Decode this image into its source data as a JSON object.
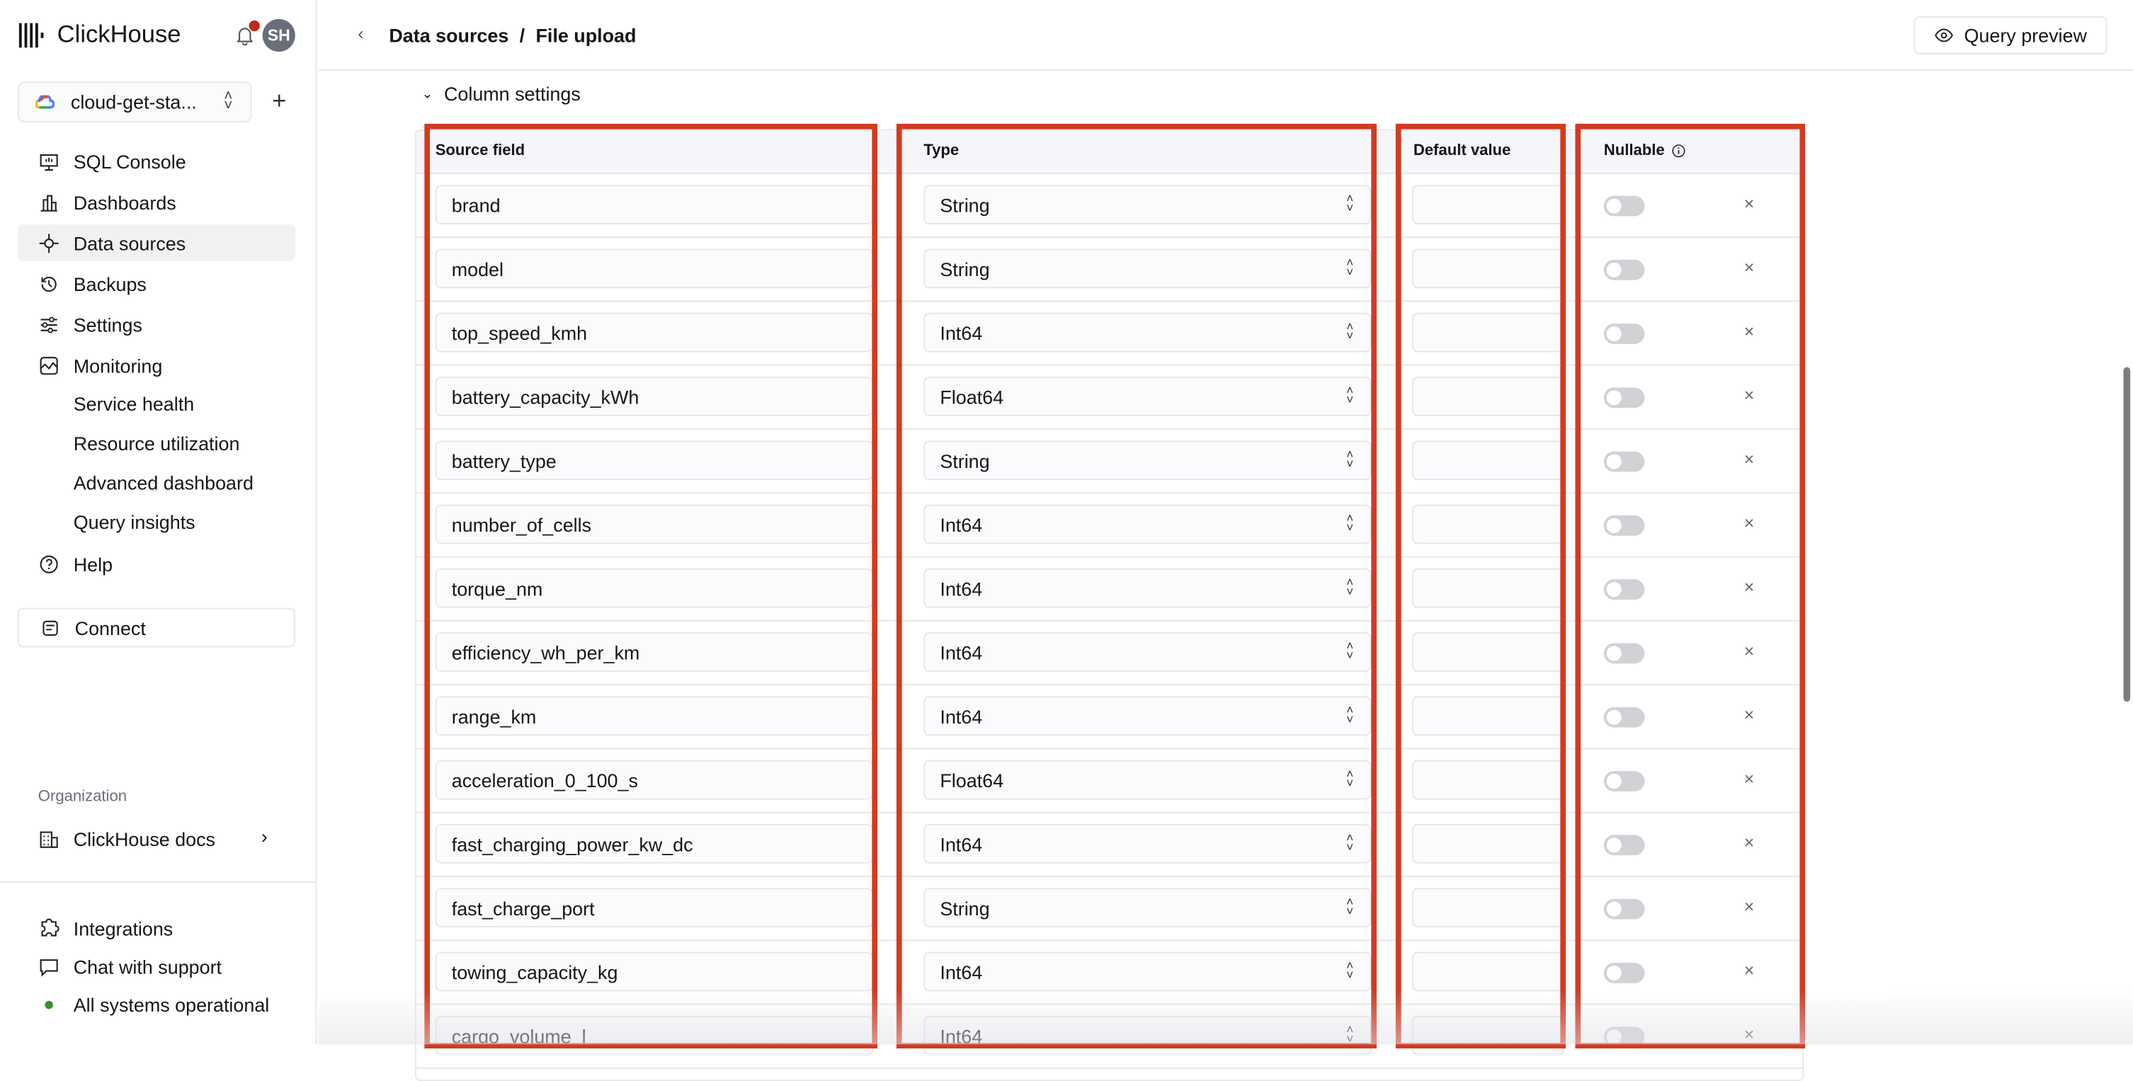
{
  "app": {
    "name": "ClickHouse",
    "avatar_initials": "SH",
    "notification": true
  },
  "service": {
    "name": "cloud-get-sta...",
    "provider_icon": "google-cloud-icon"
  },
  "sidebar": {
    "items": [
      {
        "label": "SQL Console",
        "icon": "sql-console-icon"
      },
      {
        "label": "Dashboards",
        "icon": "dashboards-icon"
      },
      {
        "label": "Data sources",
        "icon": "data-sources-icon",
        "active": true
      },
      {
        "label": "Backups",
        "icon": "backups-icon"
      },
      {
        "label": "Settings",
        "icon": "settings-icon"
      },
      {
        "label": "Monitoring",
        "icon": "monitoring-icon"
      }
    ],
    "monitoring_sub": [
      "Service health",
      "Resource utilization",
      "Advanced dashboard",
      "Query insights"
    ],
    "help": "Help",
    "connect": "Connect",
    "org_label": "Organization",
    "org_name": "ClickHouse docs",
    "footer": {
      "integrations": "Integrations",
      "chat": "Chat with support",
      "status": "All systems operational",
      "status_color": "#3d8f2a"
    }
  },
  "header": {
    "breadcrumb": [
      "Data sources",
      "File upload"
    ],
    "separator": "/",
    "query_preview": "Query preview"
  },
  "column_settings": {
    "title": "Column settings",
    "headers": {
      "source": "Source field",
      "type": "Type",
      "default": "Default value",
      "nullable": "Nullable"
    },
    "rows": [
      {
        "field": "brand",
        "type": "String",
        "default": "",
        "nullable": false
      },
      {
        "field": "model",
        "type": "String",
        "default": "",
        "nullable": false
      },
      {
        "field": "top_speed_kmh",
        "type": "Int64",
        "default": "",
        "nullable": false
      },
      {
        "field": "battery_capacity_kWh",
        "type": "Float64",
        "default": "",
        "nullable": false
      },
      {
        "field": "battery_type",
        "type": "String",
        "default": "",
        "nullable": false
      },
      {
        "field": "number_of_cells",
        "type": "Int64",
        "default": "",
        "nullable": false
      },
      {
        "field": "torque_nm",
        "type": "Int64",
        "default": "",
        "nullable": false
      },
      {
        "field": "efficiency_wh_per_km",
        "type": "Int64",
        "default": "",
        "nullable": false
      },
      {
        "field": "range_km",
        "type": "Int64",
        "default": "",
        "nullable": false
      },
      {
        "field": "acceleration_0_100_s",
        "type": "Float64",
        "default": "",
        "nullable": false
      },
      {
        "field": "fast_charging_power_kw_dc",
        "type": "Int64",
        "default": "",
        "nullable": false
      },
      {
        "field": "fast_charge_port",
        "type": "String",
        "default": "",
        "nullable": false
      },
      {
        "field": "towing_capacity_kg",
        "type": "Int64",
        "default": "",
        "nullable": false
      },
      {
        "field": "cargo_volume_l",
        "type": "Int64",
        "default": "",
        "nullable": false
      }
    ]
  },
  "annotation_color": "#d33a22"
}
